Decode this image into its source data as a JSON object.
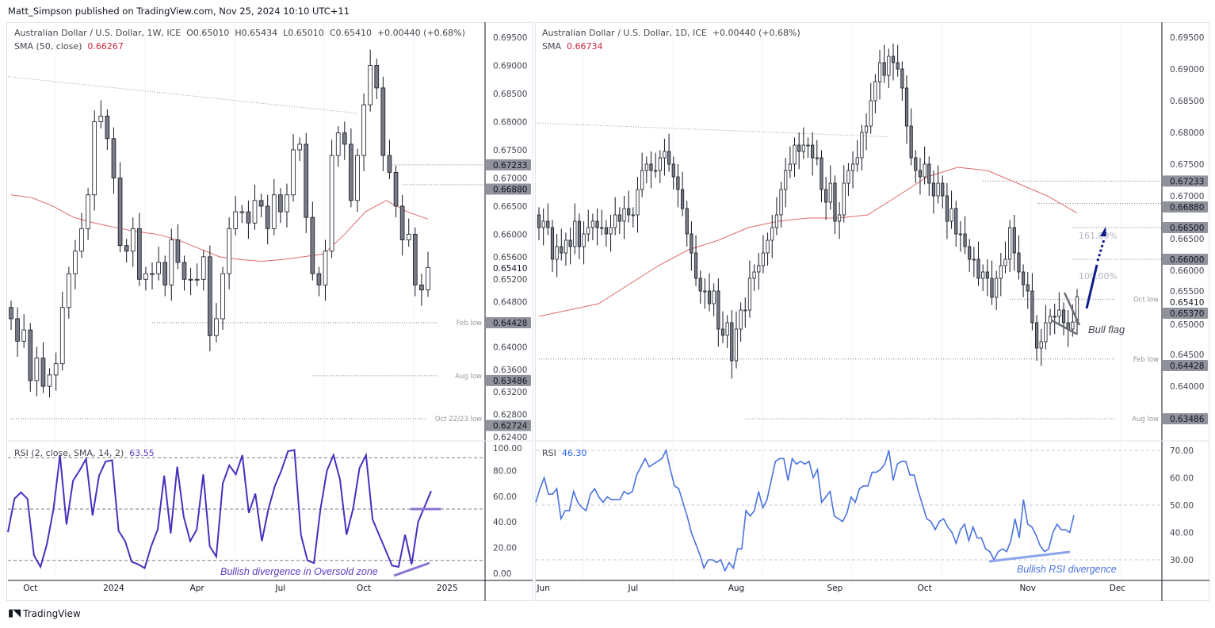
{
  "header": {
    "published": "Matt_Simpson published on TradingView.com, Nov 25, 2024 10:10 UTC+11"
  },
  "footer": {
    "brand": "TradingView",
    "logo_icon": "tradingview-logo-icon"
  },
  "colors": {
    "up": "#ffffff",
    "down": "#787b86",
    "sma": "#e06a6a",
    "rsi_weekly": "#4a2fbd",
    "rsi_daily": "#4a72e0",
    "badge": "#8f929b",
    "arrow": "#0d1a8c"
  },
  "chart_data": [
    {
      "type": "candlestick",
      "title": "Australian Dollar / U.S. Dollar, 1W, ICE",
      "ohlc_label": {
        "o": "O0.65010",
        "h": "H0.65434",
        "l": "L0.65010",
        "c": "C0.65410",
        "chg": "+0.00440 (+0.68%)"
      },
      "sma_label": "SMA (50, close)",
      "sma_value": "0.66267",
      "ylim": [
        0.622,
        0.6975
      ],
      "y_ticks": [
        "0.69500",
        "0.69000",
        "0.68500",
        "0.68000",
        "0.67500",
        "0.67000",
        "0.66500",
        "0.66000",
        "0.65600",
        "0.65200",
        "0.64800",
        "0.64000",
        "0.63600",
        "0.63200",
        "0.62800",
        "0.62400"
      ],
      "last_price": "0.65410",
      "x_labels": [
        {
          "label": "Oct",
          "week": 3
        },
        {
          "label": "2024",
          "week": 16
        },
        {
          "label": "Apr",
          "week": 29
        },
        {
          "label": "Jul",
          "week": 42
        },
        {
          "label": "Oct",
          "week": 55
        },
        {
          "label": "2025",
          "week": 68
        }
      ],
      "closes": [
        0.645,
        0.641,
        0.643,
        0.634,
        0.638,
        0.633,
        0.635,
        0.637,
        0.647,
        0.653,
        0.657,
        0.661,
        0.667,
        0.68,
        0.681,
        0.677,
        0.67,
        0.658,
        0.657,
        0.661,
        0.652,
        0.653,
        0.653,
        0.655,
        0.651,
        0.659,
        0.655,
        0.652,
        0.652,
        0.652,
        0.656,
        0.642,
        0.645,
        0.653,
        0.661,
        0.664,
        0.664,
        0.662,
        0.666,
        0.665,
        0.661,
        0.667,
        0.664,
        0.667,
        0.675,
        0.676,
        0.663,
        0.653,
        0.651,
        0.657,
        0.674,
        0.678,
        0.676,
        0.666,
        0.674,
        0.683,
        0.69,
        0.686,
        0.674,
        0.671,
        0.665,
        0.659,
        0.66,
        0.651,
        0.6501,
        0.6541
      ],
      "sma": [
        0.667,
        0.6665,
        0.665,
        0.663,
        0.662,
        0.6612,
        0.6605,
        0.66,
        0.659,
        0.6575,
        0.656,
        0.6555,
        0.6552,
        0.6555,
        0.656,
        0.6565,
        0.66,
        0.664,
        0.666,
        0.664,
        0.6627
      ],
      "levels": [
        {
          "price": 0.67233,
          "label": "",
          "badge": "0.67233",
          "from_week": 59
        },
        {
          "price": 0.6688,
          "label": "",
          "badge": "0.66880",
          "from_week": 61
        },
        {
          "price": 0.64428,
          "label": "Feb low",
          "badge": "0.64428",
          "from_week": 22
        },
        {
          "price": 0.63486,
          "label": "Aug low",
          "badge": "0.63486",
          "from_week": 47
        },
        {
          "price": 0.62724,
          "label": "Oct 22/23 low",
          "badge": "0.62724",
          "from_week": 0
        }
      ],
      "trendline": [
        [
          0,
          0.688
        ],
        [
          54,
          0.6815
        ]
      ],
      "rsi": {
        "label": "RSI (2, close, SMA, 14, 2)",
        "value": "63.55",
        "y_ticks": [
          "100.00",
          "80.00",
          "60.00",
          "40.00",
          "20.00",
          "0.00"
        ],
        "bands": [
          90,
          50,
          10
        ],
        "values": [
          32,
          58,
          63,
          58,
          14,
          5,
          23,
          50,
          92,
          38,
          72,
          80,
          89,
          45,
          76,
          87,
          88,
          33,
          25,
          9,
          7,
          4,
          21,
          34,
          76,
          31,
          83,
          44,
          25,
          34,
          77,
          21,
          13,
          70,
          84,
          77,
          92,
          47,
          62,
          25,
          50,
          68,
          80,
          95,
          96,
          30,
          10,
          8,
          50,
          80,
          92,
          73,
          30,
          50,
          82,
          92,
          42,
          30,
          18,
          6,
          5,
          30,
          7,
          40,
          52,
          64
        ],
        "annotation": "Bullish divergence in Oversold zone"
      }
    },
    {
      "type": "candlestick",
      "title": "Australian Dollar / U.S. Dollar, 1D, ICE",
      "chg": "+0.00440 (+0.68%)",
      "sma_label": "SMA",
      "sma_value": "0.66734",
      "ylim": [
        0.624,
        0.6965
      ],
      "y_ticks": [
        "0.69500",
        "0.69000",
        "0.68500",
        "0.68000",
        "0.67500",
        "0.67000",
        "0.66500",
        "0.66000",
        "0.65500",
        "0.65000",
        "0.64500",
        "0.64000"
      ],
      "last_price": "0.65410",
      "x_labels": [
        {
          "label": "Jun",
          "day": 1
        },
        {
          "label": "Jul",
          "day": 21
        },
        {
          "label": "Aug",
          "day": 44
        },
        {
          "label": "Sep",
          "day": 66
        },
        {
          "label": "Oct",
          "day": 86
        },
        {
          "label": "Nov",
          "day": 109
        },
        {
          "label": "Dec",
          "day": 129
        }
      ],
      "closes": [
        0.665,
        0.666,
        0.665,
        0.66,
        0.662,
        0.661,
        0.663,
        0.662,
        0.666,
        0.662,
        0.664,
        0.665,
        0.666,
        0.665,
        0.665,
        0.664,
        0.665,
        0.667,
        0.666,
        0.668,
        0.667,
        0.667,
        0.671,
        0.674,
        0.675,
        0.674,
        0.674,
        0.676,
        0.677,
        0.675,
        0.673,
        0.671,
        0.668,
        0.664,
        0.661,
        0.657,
        0.655,
        0.655,
        0.653,
        0.655,
        0.649,
        0.648,
        0.65,
        0.644,
        0.649,
        0.652,
        0.652,
        0.657,
        0.658,
        0.659,
        0.661,
        0.663,
        0.665,
        0.667,
        0.671,
        0.674,
        0.675,
        0.678,
        0.677,
        0.678,
        0.678,
        0.676,
        0.676,
        0.671,
        0.669,
        0.672,
        0.666,
        0.667,
        0.672,
        0.674,
        0.675,
        0.676,
        0.68,
        0.681,
        0.685,
        0.688,
        0.691,
        0.689,
        0.692,
        0.691,
        0.69,
        0.687,
        0.681,
        0.676,
        0.674,
        0.673,
        0.675,
        0.672,
        0.67,
        0.672,
        0.67,
        0.666,
        0.668,
        0.664,
        0.664,
        0.662,
        0.66,
        0.66,
        0.657,
        0.658,
        0.657,
        0.654,
        0.657,
        0.659,
        0.66,
        0.665,
        0.661,
        0.658,
        0.656,
        0.655,
        0.65,
        0.646,
        0.647,
        0.65,
        0.651,
        0.651,
        0.652,
        0.65,
        0.649,
        0.6501,
        0.6541
      ],
      "sma": [
        0.651,
        0.652,
        0.653,
        0.656,
        0.659,
        0.6615,
        0.663,
        0.665,
        0.666,
        0.6665,
        0.6665,
        0.667,
        0.67,
        0.673,
        0.6745,
        0.674,
        0.672,
        0.67,
        0.6673
      ],
      "levels": [
        {
          "price": 0.67233,
          "label": "",
          "badge": "0.67233",
          "from_day": 99
        },
        {
          "price": 0.6688,
          "label": "",
          "badge": "0.66880",
          "from_day": 111
        },
        {
          "price": 0.665,
          "label": "",
          "badge": "0.66500",
          "from_day": 119
        },
        {
          "price": 0.66,
          "label": "",
          "badge": "0.66000",
          "from_day": 119
        },
        {
          "price": 0.6537,
          "label": "Oct low",
          "badge": "0.65370",
          "from_day": 105
        },
        {
          "price": 0.64428,
          "label": "Feb low",
          "badge": "0.64428",
          "from_day": 0
        },
        {
          "price": 0.63486,
          "label": "Aug low",
          "badge": "0.63486",
          "from_day": 46
        }
      ],
      "trendline": [
        [
          0,
          0.6815
        ],
        [
          78,
          0.6793
        ]
      ],
      "fib_labels": [
        "161.80%",
        "100.00%"
      ],
      "annotation": "Bull flag",
      "rsi": {
        "label": "RSI",
        "value": "46.30",
        "y_ticks": [
          "70.00",
          "60.00",
          "50.00",
          "40.00",
          "30.00"
        ],
        "bands": [
          70,
          50,
          30
        ],
        "values": [
          51,
          56,
          60,
          54,
          54,
          56,
          45,
          48,
          48,
          55,
          51,
          49,
          48,
          54,
          56,
          53,
          51,
          53,
          52,
          52,
          52,
          55,
          54,
          55,
          61,
          64,
          67,
          64,
          65,
          66,
          67,
          70,
          63,
          57,
          56,
          51,
          46,
          40,
          36,
          32,
          27,
          30,
          30,
          29,
          30,
          26,
          29,
          27,
          34,
          34,
          48,
          46,
          48,
          55,
          49,
          52,
          59,
          66,
          67,
          67,
          59,
          67,
          65,
          66,
          65,
          66,
          60,
          63,
          51,
          53,
          55,
          46,
          45,
          44,
          47,
          53,
          51,
          56,
          57,
          57,
          62,
          62,
          63,
          65,
          70,
          59,
          65,
          66,
          66,
          61,
          61,
          55,
          50,
          45,
          44,
          41,
          44,
          45,
          42,
          40,
          36,
          41,
          43,
          37,
          42,
          38,
          38,
          34,
          33,
          30,
          33,
          34,
          33,
          37,
          45,
          38,
          52,
          43,
          42,
          39,
          35,
          33,
          34,
          40,
          43,
          41,
          41,
          40,
          46.3
        ],
        "annotation": "Bullish RSI divergence"
      }
    }
  ]
}
